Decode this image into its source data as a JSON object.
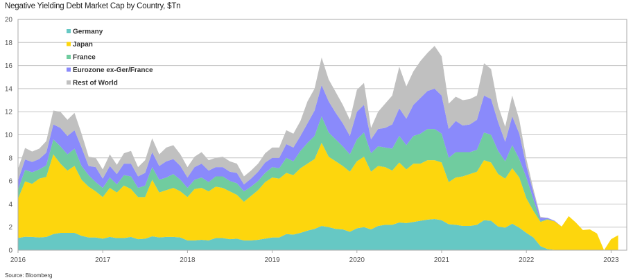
{
  "chart_data": {
    "type": "area",
    "stacked": true,
    "title": "Negative Yielding Debt Market Cap by Country, $Tn",
    "source": "Source: Bloomberg",
    "xlabel": "",
    "ylabel": "",
    "ylim": [
      0,
      20
    ],
    "yticks": [
      "0",
      "2",
      "4",
      "6",
      "8",
      "10",
      "12",
      "14",
      "16",
      "18",
      "20"
    ],
    "xticks": [
      "2016",
      "2017",
      "2018",
      "2019",
      "2020",
      "2021",
      "2022",
      "2023"
    ],
    "x_start": "2016-01",
    "x_frequency": "monthly",
    "grid": true,
    "legend_position": "top-left",
    "series": [
      {
        "name": "Germany",
        "color": "#66c8c4",
        "values": [
          1.06,
          1.16,
          1.15,
          1.1,
          1.15,
          1.4,
          1.5,
          1.5,
          1.5,
          1.25,
          1.1,
          1.1,
          1.0,
          1.15,
          1.05,
          1.05,
          1.15,
          0.95,
          1.0,
          1.2,
          1.1,
          1.15,
          1.15,
          1.1,
          0.85,
          0.85,
          0.9,
          0.85,
          1.05,
          1.05,
          0.95,
          1.0,
          0.85,
          0.85,
          0.9,
          1.0,
          1.1,
          1.1,
          1.4,
          1.35,
          1.5,
          1.7,
          1.85,
          2.1,
          2.0,
          1.85,
          1.8,
          1.6,
          1.9,
          2.0,
          1.8,
          2.1,
          2.2,
          2.2,
          2.4,
          2.35,
          2.45,
          2.55,
          2.65,
          2.7,
          2.6,
          2.25,
          2.2,
          2.1,
          2.1,
          2.2,
          2.6,
          2.55,
          2.05,
          1.95,
          2.3,
          1.95,
          1.5,
          1.1,
          0.35,
          0.1,
          0.03,
          0,
          0,
          0,
          0,
          0,
          0,
          0,
          0,
          0
        ]
      },
      {
        "name": "Japan",
        "color": "#fdd60d",
        "values": [
          3.4,
          4.8,
          4.6,
          5.1,
          5.2,
          6.9,
          6.0,
          5.4,
          5.8,
          4.85,
          4.4,
          4.0,
          3.6,
          4.25,
          3.95,
          4.55,
          4.15,
          3.65,
          3.6,
          4.9,
          3.9,
          4.05,
          4.25,
          4.0,
          3.75,
          4.45,
          4.5,
          4.25,
          4.45,
          4.35,
          4.15,
          3.8,
          3.35,
          3.85,
          4.3,
          4.9,
          5.2,
          5.1,
          5.3,
          5.15,
          5.6,
          5.8,
          6.05,
          7.2,
          6.1,
          5.85,
          5.5,
          5.2,
          5.8,
          6.1,
          5.0,
          5.2,
          5.0,
          4.7,
          5.2,
          4.65,
          5.05,
          4.95,
          5.15,
          5.1,
          5.0,
          3.65,
          4.1,
          4.3,
          4.5,
          4.6,
          5.2,
          5.05,
          4.55,
          4.25,
          4.8,
          4.35,
          3.0,
          2.3,
          2.1,
          2.55,
          2.47,
          2.05,
          2.95,
          2.4,
          1.75,
          1.8,
          1.45,
          0.0,
          0.95,
          1.3
        ]
      },
      {
        "name": "France",
        "color": "#70cc9f",
        "values": [
          0.8,
          1.0,
          1.0,
          0.8,
          1.0,
          1.3,
          1.5,
          1.4,
          1.5,
          1.2,
          1.0,
          0.8,
          0.8,
          0.9,
          0.7,
          0.9,
          1.1,
          0.8,
          1.0,
          1.1,
          1.1,
          1.1,
          1.2,
          1.0,
          0.8,
          0.8,
          0.9,
          0.8,
          0.9,
          1.0,
          0.9,
          1.0,
          0.9,
          0.8,
          0.8,
          0.8,
          0.9,
          0.9,
          1.3,
          1.2,
          1.5,
          1.8,
          2.0,
          2.3,
          2.1,
          1.9,
          1.7,
          1.5,
          1.9,
          2.1,
          1.6,
          1.7,
          1.7,
          1.9,
          2.3,
          2.1,
          2.4,
          2.6,
          2.7,
          2.7,
          2.5,
          2.1,
          2.2,
          2.1,
          1.9,
          1.9,
          2.4,
          2.4,
          2.0,
          1.5,
          2.0,
          1.6,
          1.8,
          1.0,
          0.1,
          0.05,
          0,
          0,
          0,
          0,
          0,
          0,
          0,
          0,
          0,
          0
        ]
      },
      {
        "name": "Eurozone ex-Ger/France",
        "color": "#8a8afb",
        "values": [
          0.8,
          0.9,
          0.9,
          0.9,
          1.1,
          1.3,
          1.6,
          1.6,
          1.6,
          1.6,
          0.8,
          1.3,
          0.8,
          1.0,
          0.9,
          1.0,
          1.1,
          1.0,
          1.1,
          1.3,
          1.2,
          1.4,
          1.3,
          1.2,
          0.9,
          1.1,
          1.2,
          1.0,
          0.8,
          0.8,
          0.8,
          0.9,
          0.6,
          0.7,
          0.8,
          0.9,
          0.8,
          0.9,
          1.2,
          1.2,
          1.3,
          1.7,
          2.2,
          2.7,
          2.7,
          2.3,
          2.0,
          1.6,
          2.4,
          2.4,
          1.2,
          1.5,
          1.7,
          2.1,
          2.4,
          2.3,
          2.7,
          3.1,
          3.3,
          3.5,
          3.3,
          2.5,
          2.7,
          2.3,
          2.4,
          2.6,
          3.2,
          3.1,
          2.5,
          1.7,
          2.5,
          2.2,
          1.0,
          0.6,
          0.25,
          0.1,
          0.05,
          0,
          0,
          0,
          0,
          0,
          0,
          0,
          0,
          0
        ]
      },
      {
        "name": "Rest of World",
        "color": "#c0c0c0",
        "values": [
          1.0,
          1.0,
          0.9,
          0.9,
          1.0,
          1.2,
          1.4,
          1.4,
          1.5,
          1.2,
          0.8,
          0.8,
          0.8,
          1.0,
          0.8,
          0.9,
          1.1,
          0.8,
          1.1,
          1.2,
          1.0,
          1.2,
          1.2,
          1.0,
          0.9,
          0.9,
          1.0,
          0.9,
          0.8,
          0.9,
          0.9,
          0.8,
          0.7,
          0.7,
          0.7,
          0.8,
          0.9,
          0.9,
          1.2,
          1.2,
          1.3,
          1.9,
          1.9,
          2.4,
          1.9,
          1.8,
          1.6,
          1.4,
          1.9,
          1.9,
          1.0,
          1.5,
          2.1,
          2.5,
          3.6,
          2.8,
          2.9,
          3.2,
          3.3,
          3.7,
          3.4,
          2.2,
          2.1,
          2.2,
          2.2,
          2.1,
          2.8,
          2.6,
          1.4,
          1.3,
          1.8,
          1.2,
          0.6,
          0.3,
          0.1,
          0,
          0,
          0,
          0,
          0,
          0,
          0,
          0,
          0,
          0,
          0
        ]
      }
    ]
  }
}
